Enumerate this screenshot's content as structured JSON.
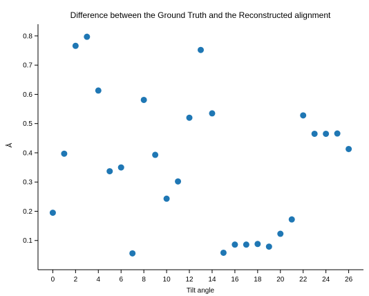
{
  "chart_data": {
    "type": "scatter",
    "title": "Difference between the Ground Truth and the Reconstructed alignment",
    "xlabel": "Tilt angle",
    "ylabel": "Å",
    "xlim": [
      -1.3,
      27.3
    ],
    "ylim": [
      0,
      0.84
    ],
    "xticks": [
      0,
      2,
      4,
      6,
      8,
      10,
      12,
      14,
      16,
      18,
      20,
      22,
      24,
      26
    ],
    "yticks": [
      0.1,
      0.2,
      0.3,
      0.4,
      0.5,
      0.6,
      0.7,
      0.8
    ],
    "grid": false,
    "color": "#1f77b4",
    "x": [
      0,
      1,
      2,
      3,
      4,
      5,
      6,
      7,
      8,
      9,
      10,
      11,
      12,
      13,
      14,
      15,
      16,
      17,
      18,
      19,
      20,
      21,
      22,
      23,
      24,
      25,
      26
    ],
    "y": [
      0.195,
      0.397,
      0.766,
      0.797,
      0.613,
      0.337,
      0.35,
      0.056,
      0.581,
      0.393,
      0.243,
      0.302,
      0.52,
      0.752,
      0.535,
      0.058,
      0.086,
      0.086,
      0.088,
      0.079,
      0.123,
      0.172,
      0.528,
      0.465,
      0.465,
      0.466,
      0.413
    ]
  }
}
